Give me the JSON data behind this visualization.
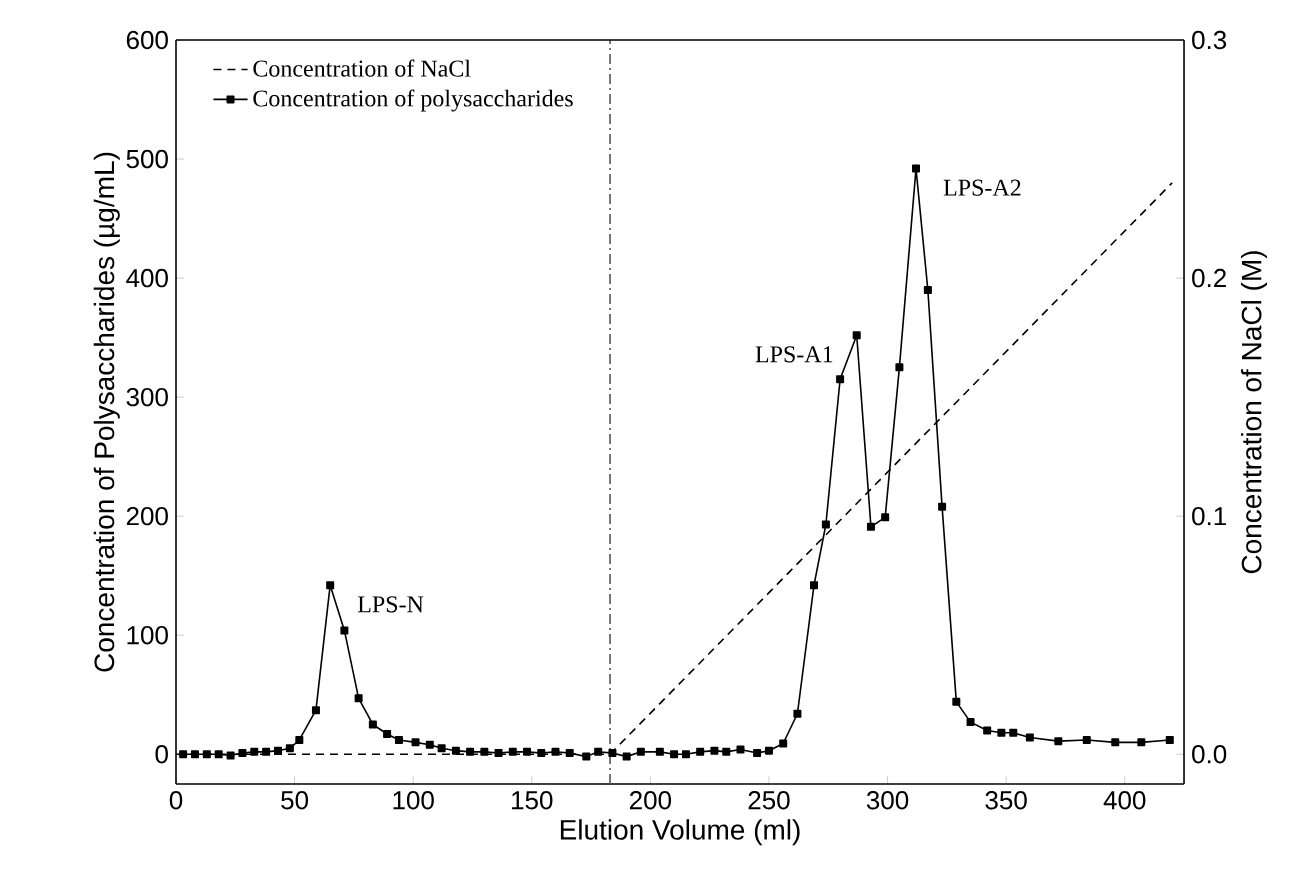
{
  "chart_data": {
    "type": "line",
    "xlabel": "Elution Volume (ml)",
    "ylabel": "Concentration of Polysaccharides (µg/mL)",
    "y2label": "Concentration of NaCl (M)",
    "xlim": [
      0,
      425
    ],
    "ylim": [
      -25,
      600
    ],
    "y2lim": [
      -0.0125,
      0.3
    ],
    "xticks": [
      0,
      50,
      100,
      150,
      200,
      250,
      300,
      350,
      400
    ],
    "yticks": [
      0,
      100,
      200,
      300,
      400,
      500,
      600
    ],
    "y2ticks": [
      {
        "value": 0,
        "label": "0.0"
      },
      {
        "value": 0.1,
        "label": "0.1"
      },
      {
        "value": 0.2,
        "label": "0.2"
      },
      {
        "value": 0.3,
        "label": "0.3"
      }
    ],
    "legend": "top left",
    "series": [
      {
        "name": "Concentration of NaCl",
        "axis": "y2",
        "color": "#000000",
        "line_style": "dashed",
        "marker": "none",
        "x": [
          0,
          183,
          420
        ],
        "values": [
          0,
          0,
          0.24
        ]
      },
      {
        "name": "Concentration of polysaccharides",
        "color": "#000000",
        "line_style": "solid",
        "marker": "square",
        "x": [
          3,
          8,
          13,
          18,
          23,
          28,
          33,
          38,
          43,
          48,
          52,
          59,
          65,
          71,
          77,
          83,
          89,
          94,
          101,
          107,
          112,
          118,
          124,
          130,
          136,
          142,
          148,
          154,
          160,
          166,
          173,
          178,
          184,
          190,
          196,
          204,
          210,
          215,
          221,
          227,
          232,
          238,
          245,
          250,
          256,
          262,
          269,
          274,
          280,
          287,
          293,
          299,
          305,
          312,
          317,
          323,
          329,
          335,
          342,
          348,
          353,
          360,
          372,
          384,
          396,
          407,
          419
        ],
        "values": [
          0,
          0,
          0,
          0,
          -1,
          1,
          2,
          2,
          3,
          5,
          12,
          37,
          142,
          104,
          47,
          25,
          17,
          12,
          10,
          8,
          5,
          3,
          2,
          2,
          1,
          2,
          2,
          1,
          2,
          1,
          -2,
          2,
          1,
          -2,
          2,
          2,
          0,
          0,
          2,
          3,
          2,
          4,
          1,
          3,
          9,
          34,
          142,
          193,
          315,
          352,
          191,
          199,
          325,
          492,
          390,
          208,
          44,
          27,
          20,
          18,
          18,
          14,
          11,
          12,
          10,
          10,
          12
        ]
      }
    ],
    "ref_lines": [
      {
        "axis": "x",
        "value": 183,
        "line_style": "dashdot",
        "color": "#555555"
      }
    ],
    "annotations": [
      {
        "text": "LPS-N",
        "x": 65,
        "y": 142
      },
      {
        "text": "LPS-A1",
        "x": 287,
        "y": 352
      },
      {
        "text": "LPS-A2",
        "x": 312,
        "y": 492
      }
    ]
  }
}
